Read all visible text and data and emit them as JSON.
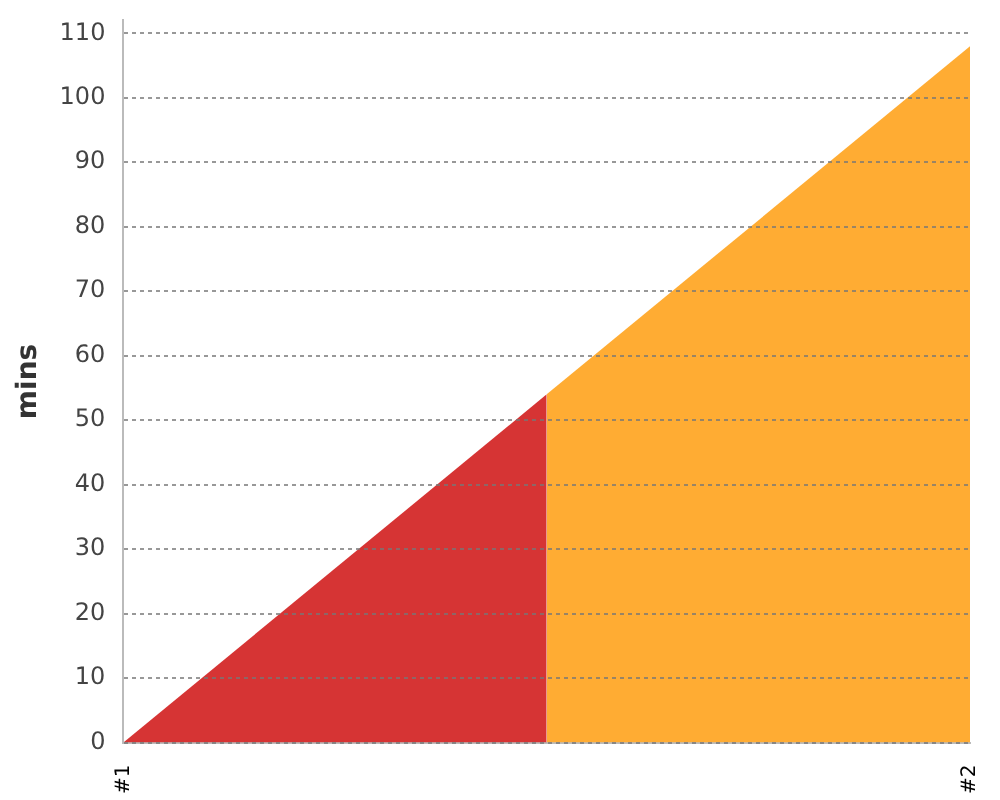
{
  "chart_data": {
    "type": "area",
    "ylabel": "mins",
    "categories": [
      "#1",
      null,
      "#2"
    ],
    "series": [
      {
        "color": "#d63434",
        "values": [
          0,
          54,
          null
        ]
      },
      {
        "color": "#ffac33",
        "values": [
          null,
          54,
          108
        ]
      }
    ],
    "ylim": [
      0,
      112
    ],
    "yticks": [
      0,
      10,
      20,
      30,
      40,
      50,
      60,
      70,
      80,
      90,
      100,
      110
    ],
    "grid": "y",
    "legend": false
  }
}
